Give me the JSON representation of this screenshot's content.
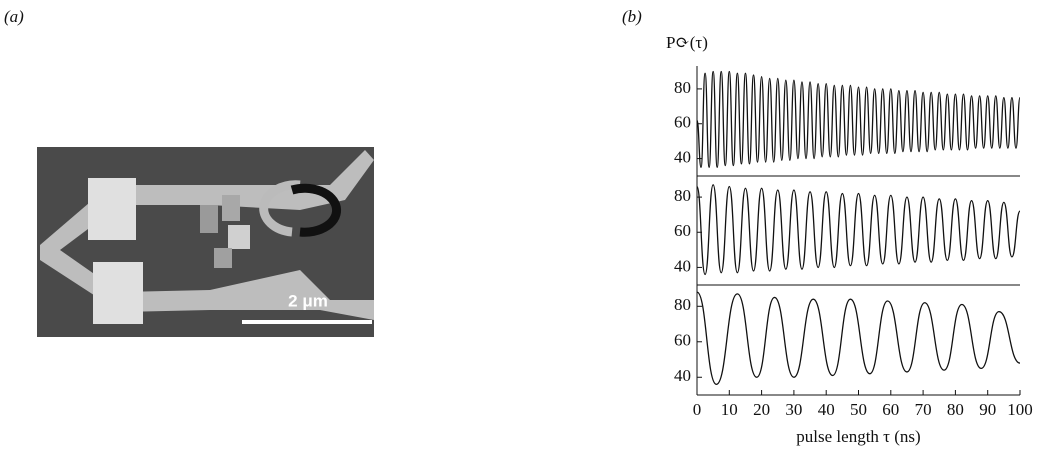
{
  "panels": {
    "a": {
      "label": "(a)",
      "scale_bar": "2 μm"
    },
    "b": {
      "label": "(b)"
    }
  },
  "chart_data": [
    {
      "type": "line",
      "ylabel": "P⟳(τ)",
      "xlim": [
        0,
        100
      ],
      "ylim": [
        30,
        92
      ],
      "yticks": [
        40,
        60,
        80
      ],
      "series": [
        {
          "name": null,
          "color": "#111111",
          "x": [
            0,
            1.25,
            2.5,
            3.75,
            5,
            6.25,
            7.5,
            8.75,
            10,
            11.25,
            12.5,
            13.75,
            15,
            16.25,
            17.5,
            18.75,
            20,
            21.25,
            22.5,
            23.75,
            25,
            26.25,
            27.5,
            28.75,
            30,
            31.25,
            32.5,
            33.75,
            35,
            36.25,
            37.5,
            38.75,
            40,
            41.25,
            42.5,
            43.75,
            45,
            46.25,
            47.5,
            48.75,
            50,
            51.25,
            52.5,
            53.75,
            55,
            56.25,
            57.5,
            58.75,
            60,
            61.25,
            62.5,
            63.75,
            65,
            66.25,
            67.5,
            68.75,
            70,
            71.25,
            72.5,
            73.75,
            75,
            76.25,
            77.5,
            78.75,
            80,
            81.25,
            82.5,
            83.75,
            85,
            86.25,
            87.5,
            88.75,
            90,
            91.25,
            92.5,
            93.75,
            95,
            96.25,
            97.5,
            98.75,
            100
          ],
          "values": [
            62,
            35,
            89,
            35,
            90,
            35,
            90,
            36,
            90,
            36,
            89,
            37,
            89,
            37,
            88,
            38,
            87,
            38,
            86,
            38,
            86,
            39,
            85,
            39,
            85,
            40,
            84,
            40,
            84,
            40,
            83,
            41,
            83,
            41,
            82,
            41,
            82,
            42,
            82,
            42,
            81,
            42,
            81,
            43,
            80,
            43,
            80,
            43,
            80,
            43,
            79,
            44,
            79,
            44,
            79,
            44,
            78,
            44,
            78,
            45,
            78,
            45,
            77,
            45,
            77,
            45,
            77,
            45,
            76,
            46,
            76,
            46,
            76,
            46,
            76,
            46,
            75,
            46,
            75,
            46,
            75
          ]
        }
      ]
    },
    {
      "type": "line",
      "xlim": [
        0,
        100
      ],
      "ylim": [
        30,
        92
      ],
      "yticks": [
        40,
        60,
        80
      ],
      "series": [
        {
          "name": null,
          "color": "#111111",
          "x": [
            0,
            2.5,
            5,
            7.5,
            10,
            12.5,
            15,
            17.5,
            20,
            22.5,
            25,
            27.5,
            30,
            32.5,
            35,
            37.5,
            40,
            42.5,
            45,
            47.5,
            50,
            52.5,
            55,
            57.5,
            60,
            62.5,
            65,
            67.5,
            70,
            72.5,
            75,
            77.5,
            80,
            82.5,
            85,
            87.5,
            90,
            92.5,
            95,
            97.5,
            100
          ],
          "values": [
            86,
            36,
            87,
            37,
            86,
            37,
            85,
            38,
            85,
            38,
            84,
            39,
            84,
            39,
            83,
            40,
            83,
            40,
            82,
            41,
            82,
            41,
            81,
            42,
            81,
            42,
            80,
            43,
            80,
            43,
            79,
            44,
            79,
            44,
            78,
            45,
            78,
            45,
            77,
            46,
            72
          ]
        }
      ]
    },
    {
      "type": "line",
      "xlabel": "pulse length τ (ns)",
      "xlim": [
        0,
        100
      ],
      "ylim": [
        30,
        92
      ],
      "yticks": [
        40,
        60,
        80
      ],
      "xticks": [
        0,
        10,
        20,
        30,
        40,
        50,
        60,
        70,
        80,
        90,
        100
      ],
      "series": [
        {
          "name": null,
          "color": "#111111",
          "x": [
            0,
            6,
            12.5,
            18.5,
            24,
            30,
            36,
            42,
            47.5,
            53.5,
            59,
            65,
            70.5,
            76.5,
            82,
            88,
            93.5,
            100
          ],
          "values": [
            88,
            36,
            87,
            40,
            85,
            40,
            84,
            41,
            84,
            42,
            83,
            43,
            82,
            44,
            81,
            45,
            77,
            48
          ]
        }
      ]
    }
  ]
}
